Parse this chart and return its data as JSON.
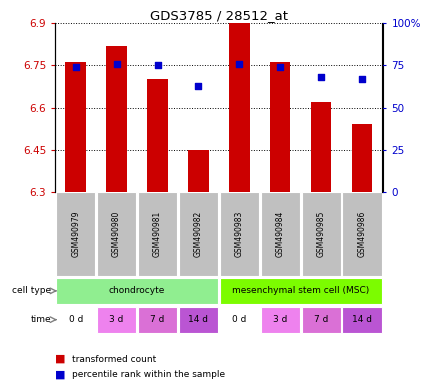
{
  "title": "GDS3785 / 28512_at",
  "samples": [
    "GSM490979",
    "GSM490980",
    "GSM490981",
    "GSM490982",
    "GSM490983",
    "GSM490984",
    "GSM490985",
    "GSM490986"
  ],
  "bar_values": [
    6.76,
    6.82,
    6.7,
    6.45,
    6.9,
    6.76,
    6.62,
    6.54
  ],
  "bar_bottom": 6.3,
  "percentile_values": [
    74,
    76,
    75,
    63,
    76,
    74,
    68,
    67
  ],
  "ylim_left": [
    6.3,
    6.9
  ],
  "ylim_right": [
    0,
    100
  ],
  "yticks_left": [
    6.3,
    6.45,
    6.6,
    6.75,
    6.9
  ],
  "yticks_right": [
    0,
    25,
    50,
    75,
    100
  ],
  "ytick_labels_right": [
    "0",
    "25",
    "50",
    "75",
    "100%"
  ],
  "cell_types": [
    {
      "label": "chondrocyte",
      "start": 0,
      "end": 4,
      "color": "#90EE90"
    },
    {
      "label": "mesenchymal stem cell (MSC)",
      "start": 4,
      "end": 8,
      "color": "#7CFC00"
    }
  ],
  "time_labels": [
    "0 d",
    "3 d",
    "7 d",
    "14 d",
    "0 d",
    "3 d",
    "7 d",
    "14 d"
  ],
  "time_colors": [
    "#ffffff",
    "#EE82EE",
    "#DA70D6",
    "#BA55D3",
    "#ffffff",
    "#EE82EE",
    "#DA70D6",
    "#BA55D3"
  ],
  "bar_color": "#CC0000",
  "dot_color": "#0000CC",
  "left_tick_color": "#CC0000",
  "right_tick_color": "#0000CC",
  "grid_color": "#000000",
  "bg_color": "#ffffff",
  "sample_bg_color": "#C0C0C0"
}
